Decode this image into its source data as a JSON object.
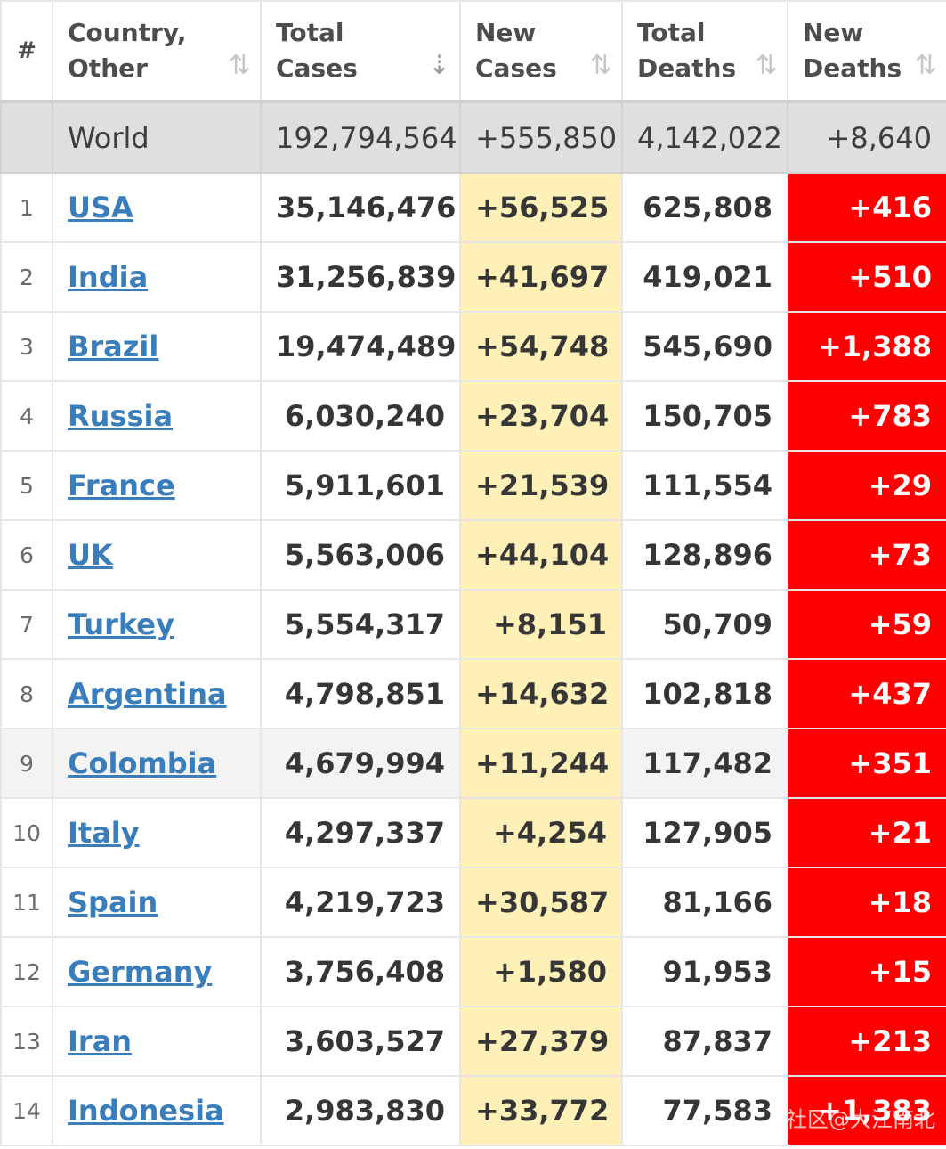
{
  "header": {
    "rank": "#",
    "country_line1": "Country,",
    "country_line2": "Other",
    "total_cases_line1": "Total",
    "total_cases_line2": "Cases",
    "new_cases_line1": "New",
    "new_cases_line2": "Cases",
    "total_deaths_line1": "Total",
    "total_deaths_line2": "Deaths",
    "new_deaths_line1": "New",
    "new_deaths_line2": "Deaths",
    "sort_icon": "⇅",
    "sort_active_icon": "⇣"
  },
  "world": {
    "country": "World",
    "total_cases": "192,794,564",
    "new_cases": "+555,850",
    "total_deaths": "4,142,022",
    "new_deaths": "+8,640"
  },
  "rows": [
    {
      "rank": "1",
      "country": "USA",
      "total_cases": "35,146,476",
      "new_cases": "+56,525",
      "total_deaths": "625,808",
      "new_deaths": "+416"
    },
    {
      "rank": "2",
      "country": "India",
      "total_cases": "31,256,839",
      "new_cases": "+41,697",
      "total_deaths": "419,021",
      "new_deaths": "+510"
    },
    {
      "rank": "3",
      "country": "Brazil",
      "total_cases": "19,474,489",
      "new_cases": "+54,748",
      "total_deaths": "545,690",
      "new_deaths": "+1,388"
    },
    {
      "rank": "4",
      "country": "Russia",
      "total_cases": "6,030,240",
      "new_cases": "+23,704",
      "total_deaths": "150,705",
      "new_deaths": "+783"
    },
    {
      "rank": "5",
      "country": "France",
      "total_cases": "5,911,601",
      "new_cases": "+21,539",
      "total_deaths": "111,554",
      "new_deaths": "+29"
    },
    {
      "rank": "6",
      "country": "UK",
      "total_cases": "5,563,006",
      "new_cases": "+44,104",
      "total_deaths": "128,896",
      "new_deaths": "+73"
    },
    {
      "rank": "7",
      "country": "Turkey",
      "total_cases": "5,554,317",
      "new_cases": "+8,151",
      "total_deaths": "50,709",
      "new_deaths": "+59"
    },
    {
      "rank": "8",
      "country": "Argentina",
      "total_cases": "4,798,851",
      "new_cases": "+14,632",
      "total_deaths": "102,818",
      "new_deaths": "+437"
    },
    {
      "rank": "9",
      "country": "Colombia",
      "total_cases": "4,679,994",
      "new_cases": "+11,244",
      "total_deaths": "117,482",
      "new_deaths": "+351"
    },
    {
      "rank": "10",
      "country": "Italy",
      "total_cases": "4,297,337",
      "new_cases": "+4,254",
      "total_deaths": "127,905",
      "new_deaths": "+21"
    },
    {
      "rank": "11",
      "country": "Spain",
      "total_cases": "4,219,723",
      "new_cases": "+30,587",
      "total_deaths": "81,166",
      "new_deaths": "+18"
    },
    {
      "rank": "12",
      "country": "Germany",
      "total_cases": "3,756,408",
      "new_cases": "+1,580",
      "total_deaths": "91,953",
      "new_deaths": "+15"
    },
    {
      "rank": "13",
      "country": "Iran",
      "total_cases": "3,603,527",
      "new_cases": "+27,379",
      "total_deaths": "87,837",
      "new_deaths": "+213"
    },
    {
      "rank": "14",
      "country": "Indonesia",
      "total_cases": "2,983,830",
      "new_cases": "+33,772",
      "total_deaths": "77,583",
      "new_deaths": "+1,383"
    }
  ],
  "colors": {
    "new_cases_bg": "#fff0b8",
    "new_deaths_bg": "#ff0000",
    "link": "#3a7dbb",
    "world_row_bg": "#dfdfdf"
  },
  "watermark": "社区@大江南北"
}
